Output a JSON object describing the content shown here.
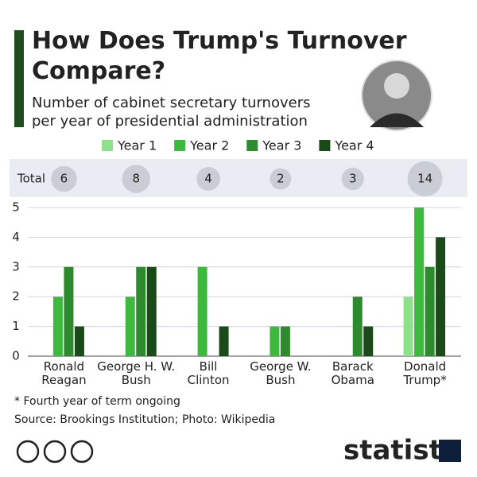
{
  "chart_data": {
    "type": "bar",
    "title": "How Does Trump's Turnover Compare?",
    "subtitle": "Number of cabinet secretary turnovers per year of presidential administration",
    "categories": [
      "Ronald Reagan",
      "George H. W. Bush",
      "Bill Clinton",
      "George W. Bush",
      "Barack Obama",
      "Donald Trump*"
    ],
    "series": [
      {
        "name": "Year 1",
        "color": "#8fe08a",
        "values": [
          0,
          0,
          0,
          0,
          0,
          2
        ]
      },
      {
        "name": "Year 2",
        "color": "#3dba3d",
        "values": [
          2,
          2,
          3,
          1,
          0,
          5
        ]
      },
      {
        "name": "Year 3",
        "color": "#2d8a2d",
        "values": [
          3,
          3,
          0,
          1,
          2,
          3
        ]
      },
      {
        "name": "Year 4",
        "color": "#1a4a1a",
        "values": [
          1,
          3,
          1,
          0,
          1,
          4
        ]
      }
    ],
    "totals_label": "Total",
    "totals": [
      6,
      8,
      4,
      2,
      3,
      14
    ],
    "ylim": [
      0,
      5
    ],
    "yticks": [
      0,
      1,
      2,
      3,
      4,
      5
    ],
    "grid": true,
    "footnote": "* Fourth year of term ongoing",
    "source": "Source: Brookings Institution; Photo: Wikipedia",
    "brand": "statista"
  }
}
